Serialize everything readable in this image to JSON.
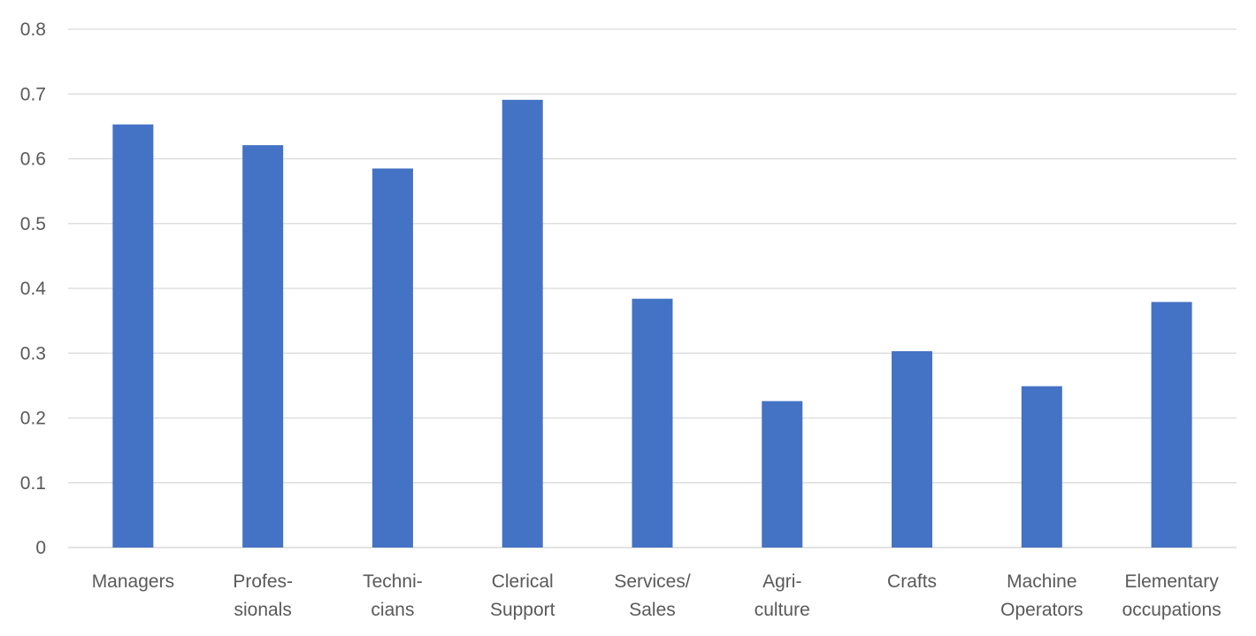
{
  "chart_data": {
    "type": "bar",
    "title": "",
    "xlabel": "",
    "ylabel": "",
    "ylim": [
      0,
      0.8
    ],
    "yticks": [
      0,
      0.1,
      0.2,
      0.3,
      0.4,
      0.5,
      0.6,
      0.7,
      0.8
    ],
    "ytick_labels": [
      "0",
      "0.1",
      "0.2",
      "0.3",
      "0.4",
      "0.5",
      "0.6",
      "0.7",
      "0.8"
    ],
    "grid": true,
    "legend": "none",
    "bar_color": "#4472C4",
    "categories": [
      [
        "Managers"
      ],
      [
        "Profes-",
        "sionals"
      ],
      [
        "Techni-",
        "cians"
      ],
      [
        "Clerical",
        "Support"
      ],
      [
        "Services/",
        "Sales"
      ],
      [
        "Agri-",
        "culture"
      ],
      [
        "Crafts"
      ],
      [
        "Machine",
        "Operators"
      ],
      [
        "Elementary",
        "occupations"
      ]
    ],
    "values": [
      0.653,
      0.621,
      0.585,
      0.691,
      0.384,
      0.226,
      0.303,
      0.249,
      0.379
    ]
  }
}
